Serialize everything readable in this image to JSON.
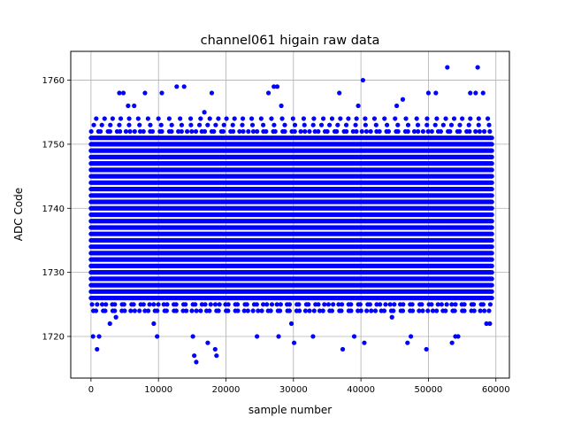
{
  "chart_data": {
    "type": "scatter",
    "title": "channel061 higain raw data",
    "xlabel": "sample number",
    "ylabel": "ADC Code",
    "xlim": [
      -3000,
      62000
    ],
    "ylim": [
      1713.5,
      1764.5
    ],
    "xticks": [
      0,
      10000,
      20000,
      30000,
      40000,
      50000,
      60000
    ],
    "yticks": [
      1720,
      1730,
      1740,
      1750,
      1760
    ],
    "grid": true,
    "marker_color": "#0000ff",
    "series": [
      {
        "x_range": [
          0,
          59400
        ],
        "dense_band": {
          "ymin": 1726,
          "ymax": 1751
        },
        "outliers": [
          [
            300,
            1720
          ],
          [
            900,
            1718
          ],
          [
            1200,
            1720
          ],
          [
            2800,
            1722
          ],
          [
            3700,
            1723
          ],
          [
            4200,
            1758
          ],
          [
            4800,
            1758
          ],
          [
            5500,
            1756
          ],
          [
            6400,
            1756
          ],
          [
            8000,
            1758
          ],
          [
            9300,
            1722
          ],
          [
            9800,
            1720
          ],
          [
            10500,
            1758
          ],
          [
            12700,
            1759
          ],
          [
            13800,
            1759
          ],
          [
            15100,
            1720
          ],
          [
            15300,
            1717
          ],
          [
            15600,
            1716
          ],
          [
            16800,
            1755
          ],
          [
            17300,
            1719
          ],
          [
            17900,
            1758
          ],
          [
            18400,
            1718
          ],
          [
            18600,
            1717
          ],
          [
            24600,
            1720
          ],
          [
            26300,
            1758
          ],
          [
            27100,
            1759
          ],
          [
            27600,
            1759
          ],
          [
            27800,
            1720
          ],
          [
            28200,
            1756
          ],
          [
            29700,
            1722
          ],
          [
            30100,
            1719
          ],
          [
            32900,
            1720
          ],
          [
            36800,
            1758
          ],
          [
            37300,
            1718
          ],
          [
            39000,
            1720
          ],
          [
            39600,
            1756
          ],
          [
            40300,
            1760
          ],
          [
            40500,
            1719
          ],
          [
            44600,
            1723
          ],
          [
            45300,
            1756
          ],
          [
            46200,
            1757
          ],
          [
            46900,
            1719
          ],
          [
            47400,
            1720
          ],
          [
            49700,
            1718
          ],
          [
            50000,
            1758
          ],
          [
            51100,
            1758
          ],
          [
            52800,
            1762
          ],
          [
            53500,
            1719
          ],
          [
            54000,
            1720
          ],
          [
            54400,
            1720
          ],
          [
            56200,
            1758
          ],
          [
            57000,
            1758
          ],
          [
            57300,
            1762
          ],
          [
            58100,
            1758
          ],
          [
            58600,
            1722
          ],
          [
            59100,
            1722
          ]
        ]
      }
    ]
  }
}
